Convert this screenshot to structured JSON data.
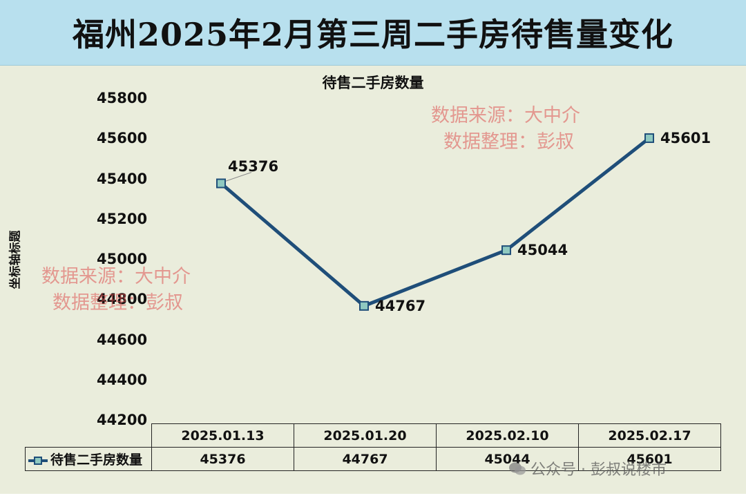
{
  "page_title": "福州2025年2月第三周二手房待售量变化",
  "chart_data": {
    "type": "line",
    "title": "待售二手房数量",
    "ylabel": "坐标轴标题",
    "xlabel": "",
    "categories": [
      "2025.01.13",
      "2025.01.20",
      "2025.02.10",
      "2025.02.17"
    ],
    "series": [
      {
        "name": "待售二手房数量",
        "values": [
          45376,
          44767,
          45044,
          45601
        ],
        "color": "#1f4e79"
      }
    ],
    "ylim": [
      44200,
      45800
    ],
    "yticks": [
      "45800",
      "45600",
      "45400",
      "45200",
      "45000",
      "44800",
      "44600",
      "44400",
      "44200"
    ],
    "data_labels": [
      "45376",
      "44767",
      "45044",
      "45601"
    ],
    "grid": false,
    "legend": "table"
  },
  "watermark": {
    "source": "数据来源：大中介",
    "editor": "数据整理：彭叔"
  },
  "brand": "公众号 · 彭叔说楼市",
  "colors": {
    "banner": "#b8e0ee",
    "plot_bg": "#eaeddc",
    "line": "#1f4e79",
    "marker_fill": "#8fc9c0",
    "watermark": "#dc5050"
  },
  "icons": {
    "brand": "wechat-icon"
  }
}
